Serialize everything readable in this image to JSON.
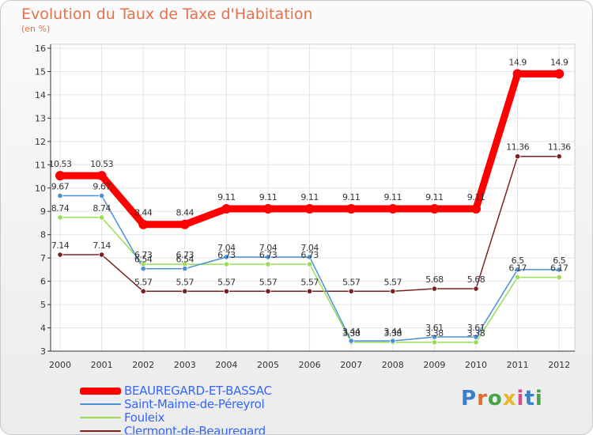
{
  "title": "Evolution du Taux de Taxe d'Habitation",
  "subtitle": "(en %)",
  "logo": {
    "text": "Proxiti",
    "colors": [
      "#3a7fc9",
      "#e86a2a",
      "#4aa34a",
      "#e8b62a",
      "#d84a8a",
      "#3a7fc9",
      "#4aa34a"
    ]
  },
  "chart_data": {
    "type": "line",
    "title": "Evolution du Taux de Taxe d'Habitation",
    "ylabel": "(en %)",
    "xlabel": "",
    "categories": [
      "2000",
      "2001",
      "2002",
      "2003",
      "2004",
      "2005",
      "2006",
      "2007",
      "2008",
      "2009",
      "2010",
      "2011",
      "2012"
    ],
    "ylim": [
      3,
      16
    ],
    "yticks": [
      "3",
      "4",
      "5",
      "6",
      "7",
      "8",
      "9",
      "10",
      "11",
      "12",
      "13",
      "14",
      "15",
      "16"
    ],
    "grid": true,
    "legend_position": "bottom-left",
    "series": [
      {
        "name": "BEAUREGARD-ET-BASSAC",
        "color": "#ff0000",
        "legend_color": "#3366ff",
        "values": [
          10.53,
          10.53,
          8.44,
          8.44,
          9.11,
          9.11,
          9.11,
          9.11,
          9.11,
          9.11,
          9.11,
          14.9,
          14.9
        ],
        "labels": [
          "10.53",
          "10.53",
          "8.44",
          "8.44",
          "9.11",
          "9.11",
          "9.11",
          "9.11",
          "9.11",
          "9.11",
          "9.11",
          "14.9",
          "14.9"
        ]
      },
      {
        "name": "Saint-Maime-de-Péreyrol",
        "color": "#4a8fd8",
        "legend_color": "#3366ff",
        "values": [
          9.67,
          9.67,
          6.54,
          6.54,
          7.04,
          7.04,
          7.04,
          3.44,
          3.44,
          3.61,
          3.61,
          6.5,
          6.5
        ],
        "labels": [
          "9.67",
          "9.67",
          "6.54",
          "6.54",
          "7.04",
          "7.04",
          "7.04",
          "3.44",
          "3.44",
          "3.61",
          "3.61",
          "6.5",
          "6.5"
        ]
      },
      {
        "name": "Fouleix",
        "color": "#99dd55",
        "legend_color": "#3366ff",
        "values": [
          8.74,
          8.74,
          6.73,
          6.73,
          6.73,
          6.73,
          6.73,
          3.38,
          3.38,
          3.38,
          3.38,
          6.17,
          6.17
        ],
        "labels": [
          "8.74",
          "8.74",
          "6.73",
          "6.73",
          "6.73",
          "6.73",
          "6.73",
          "3.38",
          "3.38",
          "3.38",
          "3.38",
          "6.17",
          "6.17"
        ]
      },
      {
        "name": "Clermont-de-Beauregard",
        "color": "#7a2222",
        "legend_color": "#3366ff",
        "values": [
          7.14,
          7.14,
          5.57,
          5.57,
          5.57,
          5.57,
          5.57,
          5.57,
          5.57,
          5.68,
          5.68,
          11.36,
          11.36
        ],
        "labels": [
          "7.14",
          "7.14",
          "5.57",
          "5.57",
          "5.57",
          "5.57",
          "5.57",
          "5.57",
          "5.57",
          "5.68",
          "5.68",
          "11.36",
          "11.36"
        ]
      }
    ]
  }
}
